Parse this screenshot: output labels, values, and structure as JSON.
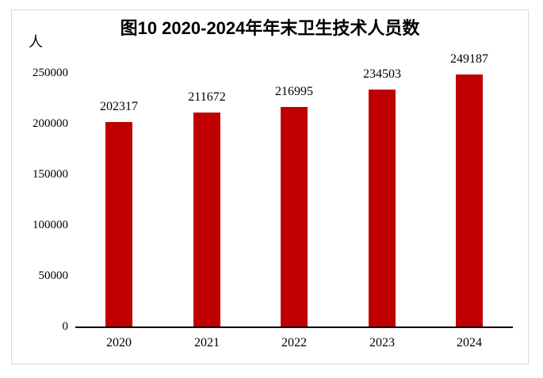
{
  "figure": {
    "title": "图10 2020-2024年年末卫生技术人员数",
    "unit_label": "人"
  },
  "colors": {
    "bar": "#C00000",
    "axis": "#000000",
    "frame_border": "#D9D9D9",
    "text": "#000000",
    "background": "#FFFFFF"
  },
  "chart_data": {
    "type": "bar",
    "title": "图10 2020-2024年年末卫生技术人员数",
    "categories": [
      "2020",
      "2021",
      "2022",
      "2023",
      "2024"
    ],
    "values": [
      202317,
      211672,
      216995,
      234503,
      249187
    ],
    "data_labels": [
      "202317",
      "211672",
      "216995",
      "234503",
      "249187"
    ],
    "xlabel": "",
    "ylabel": "人",
    "ylim": [
      0,
      250000
    ],
    "yticks": [
      0,
      50000,
      100000,
      150000,
      200000,
      250000
    ],
    "ytick_labels": [
      "0",
      "50000",
      "100000",
      "150000",
      "200000",
      "250000"
    ],
    "grid": false,
    "legend": false,
    "bar_color": "#C00000"
  }
}
